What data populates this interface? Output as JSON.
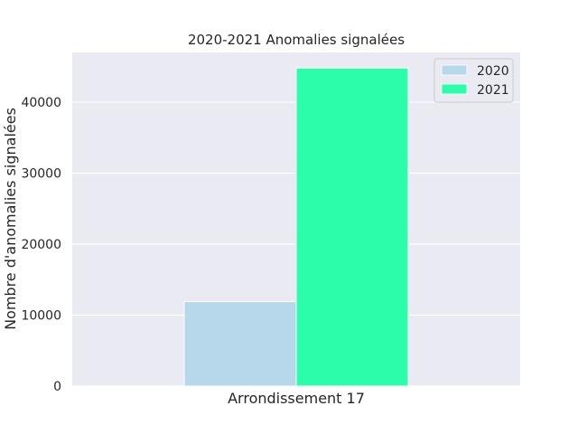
{
  "chart_data": {
    "type": "bar",
    "title": "2020-2021 Anomalies signalées",
    "xlabel": "",
    "ylabel": "Nombre d'anomalies signalées",
    "categories": [
      "Arrondissement 17"
    ],
    "series": [
      {
        "name": "2020",
        "values": [
          11900
        ],
        "color": "#b7d7ea"
      },
      {
        "name": "2021",
        "values": [
          44800
        ],
        "color": "#2bfdaa"
      }
    ],
    "ylim": [
      0,
      47000
    ],
    "yticks": [
      0,
      10000,
      20000,
      30000,
      40000
    ],
    "grid": true,
    "legend": "top-right",
    "background": "#eaeaf2"
  }
}
